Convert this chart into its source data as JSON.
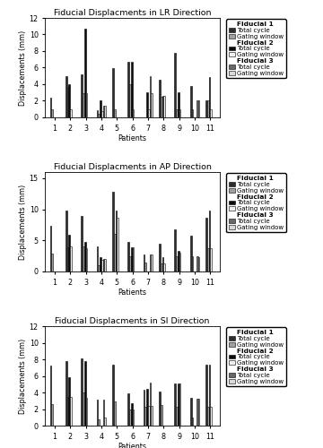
{
  "titles": [
    "Fiducial Displacments in LR Direction",
    "Fiducial Displacments in AP Direction",
    "Fiducial Displacments in SI Direction"
  ],
  "ylabel": "Displacements (mm)",
  "xlabel": "Patients",
  "ylims": [
    12,
    16,
    12
  ],
  "patients": [
    1,
    2,
    3,
    4,
    5,
    6,
    7,
    8,
    9,
    10,
    11
  ],
  "LR": {
    "f1_total": [
      2.4,
      5.0,
      5.2,
      0.9,
      5.9,
      6.7,
      null,
      4.5,
      7.8,
      3.8,
      2.0
    ],
    "f1_gate": [
      1.0,
      3.7,
      2.9,
      0.4,
      1.0,
      4.0,
      null,
      2.5,
      1.0,
      1.0,
      2.0
    ],
    "f2_total": [
      null,
      4.0,
      10.7,
      2.0,
      null,
      6.7,
      3.0,
      2.6,
      3.0,
      null,
      4.9
    ],
    "f2_gate": [
      null,
      1.0,
      2.9,
      0.8,
      null,
      1.0,
      1.0,
      2.6,
      1.0,
      null,
      1.0
    ],
    "f3_total": [
      null,
      null,
      null,
      1.4,
      null,
      null,
      5.0,
      null,
      null,
      2.0,
      null
    ],
    "f3_gate": [
      null,
      null,
      null,
      1.4,
      null,
      null,
      2.9,
      null,
      null,
      2.0,
      null
    ]
  },
  "AP": {
    "f1_total": [
      7.3,
      9.8,
      9.0,
      4.0,
      12.8,
      4.8,
      2.8,
      4.5,
      6.8,
      5.8,
      8.7
    ],
    "f1_gate": [
      2.9,
      3.9,
      4.0,
      1.0,
      6.0,
      2.5,
      1.5,
      1.3,
      2.5,
      2.5,
      3.8
    ],
    "f2_total": [
      null,
      5.9,
      4.8,
      2.3,
      9.8,
      3.9,
      null,
      2.3,
      3.3,
      null,
      9.8
    ],
    "f2_gate": [
      null,
      4.0,
      3.8,
      1.9,
      8.7,
      3.9,
      null,
      1.3,
      3.0,
      null,
      3.8
    ],
    "f3_total": [
      null,
      null,
      null,
      2.0,
      null,
      null,
      2.8,
      null,
      null,
      2.5,
      null
    ],
    "f3_gate": [
      null,
      null,
      null,
      2.0,
      null,
      null,
      2.8,
      null,
      null,
      2.3,
      null
    ]
  },
  "SI": {
    "f1_total": [
      7.2,
      7.8,
      8.1,
      3.1,
      7.4,
      3.9,
      4.3,
      4.1,
      5.1,
      3.3,
      7.3
    ],
    "f1_gate": [
      2.6,
      3.5,
      4.0,
      0.8,
      2.9,
      2.0,
      2.3,
      2.5,
      2.3,
      1.0,
      2.3
    ],
    "f2_total": [
      null,
      5.8,
      7.8,
      null,
      null,
      2.7,
      4.4,
      null,
      5.1,
      null,
      7.4
    ],
    "f2_gate": [
      null,
      3.5,
      3.4,
      null,
      null,
      2.0,
      2.4,
      null,
      5.1,
      null,
      2.3
    ],
    "f3_total": [
      null,
      null,
      null,
      3.1,
      null,
      null,
      5.2,
      null,
      null,
      3.2,
      null
    ],
    "f3_gate": [
      null,
      null,
      null,
      1.0,
      null,
      null,
      2.4,
      null,
      null,
      3.2,
      null
    ]
  },
  "colors": {
    "f1_total": "#2d2d2d",
    "f1_gate": "#a0a0a0",
    "f2_total": "#0a0a0a",
    "f2_gate": "#f0f0f0",
    "f3_total": "#686868",
    "f3_gate": "#d8d8d8"
  },
  "bar_width": 0.1,
  "figsize": [
    3.6,
    5.0
  ],
  "dpi": 100
}
